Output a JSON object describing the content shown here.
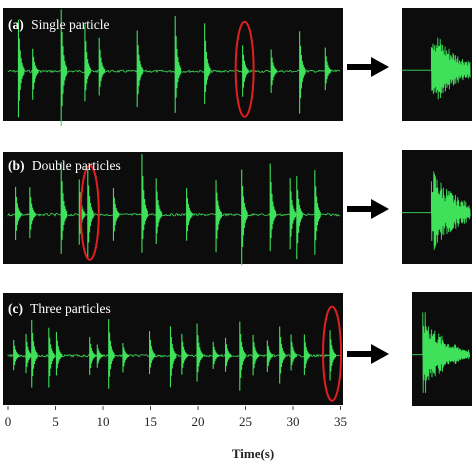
{
  "chart_data": [
    {
      "type": "line",
      "panel": "main",
      "label": "(a)",
      "title": "Single particle",
      "series": [
        {
          "values": [
            1.1,
            2.6,
            5.6,
            8.1,
            9.6,
            13.6,
            17.6,
            20.7,
            24.7,
            27.7,
            30.7,
            33.4
          ]
        }
      ],
      "highlight_at": 24.7
    },
    {
      "type": "line",
      "panel": "main",
      "label": "(b)",
      "title": "Double particles",
      "series": [
        {
          "values": [
            0.8,
            2.3,
            5.6,
            7.5,
            8.4,
            11.1,
            14.1,
            15.6,
            18.8,
            21.9,
            24.6,
            27.6,
            29.7,
            30.4,
            32.3
          ]
        }
      ],
      "highlight_at": 8.4
    },
    {
      "type": "line",
      "panel": "main",
      "label": "(c)",
      "title": "Three  particles",
      "series": [
        {
          "values": [
            0.6,
            1.9,
            2.5,
            4.3,
            5.1,
            8.6,
            9.4,
            10.6,
            12.1,
            14.9,
            17.1,
            18.3,
            19.9,
            21.6,
            22.9,
            24.4,
            25.8,
            27.3,
            28.6,
            29.8,
            31.2,
            33.9
          ]
        }
      ],
      "highlight_at": 33.9
    }
  ],
  "axis": {
    "xlabel": "Time(s)",
    "ticks": [
      "0",
      "5",
      "10",
      "15",
      "20",
      "25",
      "30",
      "35"
    ],
    "xlim": [
      0,
      35
    ]
  },
  "colors": {
    "trace": "#3fe05a",
    "panel_bg": "#0c0c0c",
    "highlight": "#e02020",
    "arrow": "#000000",
    "label": "#ffffff"
  }
}
